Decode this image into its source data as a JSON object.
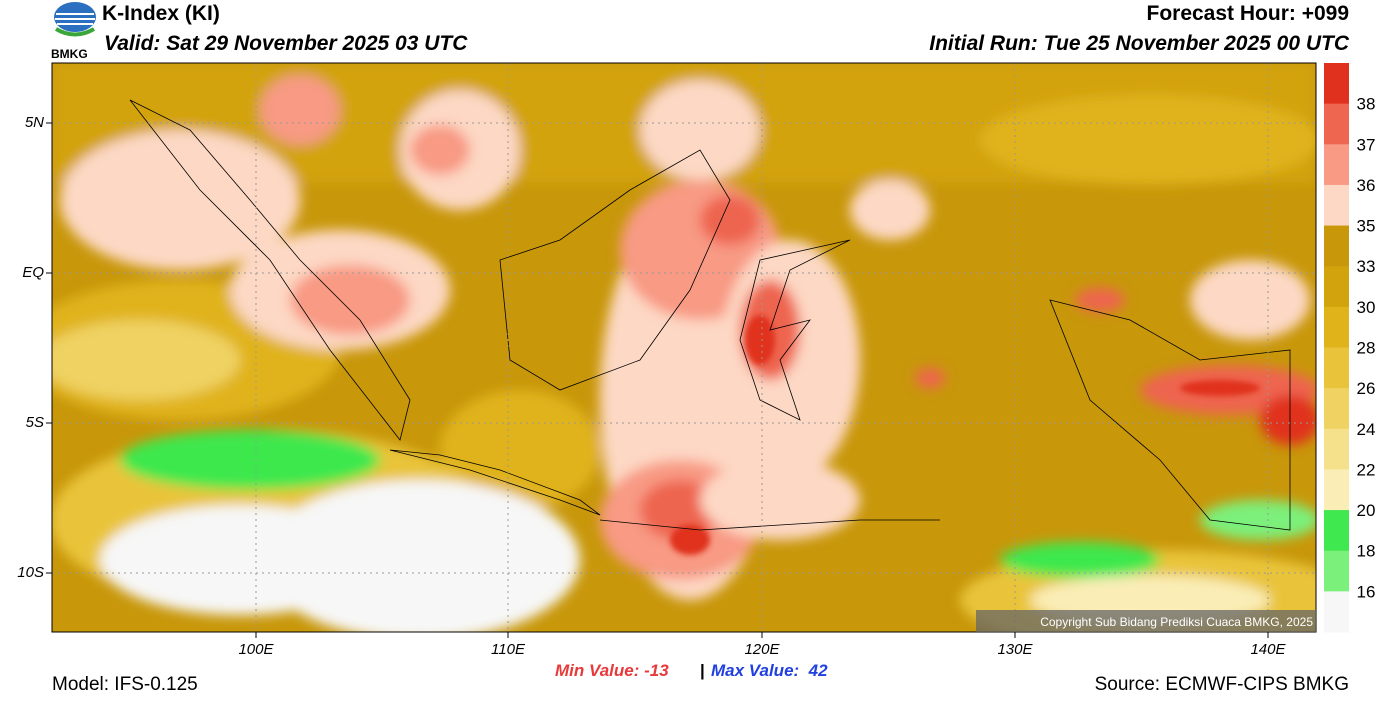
{
  "header": {
    "logo": "BMKG",
    "title": "K-Index (KI)",
    "valid": "Valid: Sat 29 November 2025 03 UTC",
    "forecast_hour": "Forecast Hour: +099",
    "initial_run": "Initial Run: Tue 25 November 2025 00 UTC"
  },
  "map": {
    "lat_labels": [
      "5N",
      "EQ",
      "5S",
      "10S"
    ],
    "lon_labels": [
      "100E",
      "110E",
      "120E",
      "130E",
      "140E"
    ],
    "copyright": "Copyright Sub Bidang Prediksi Cuaca BMKG, 2025"
  },
  "colorbar": {
    "labels": [
      "38",
      "37",
      "36",
      "35",
      "33",
      "30",
      "28",
      "26",
      "24",
      "22",
      "20",
      "18",
      "16"
    ],
    "colors": [
      "#e0301e",
      "#ee6550",
      "#f89a84",
      "#fdd8c4",
      "#c8970a",
      "#d3a30d",
      "#e0b31a",
      "#e9c43a",
      "#efd262",
      "#f5e08c",
      "#faedb6",
      "#3ee84e",
      "#7bf07a",
      "#f7f7f7"
    ]
  },
  "footer": {
    "min_value": "Min Value: -13",
    "separator": "|",
    "max_value": "Max Value:  42",
    "model": "Model: IFS-0.125",
    "source": "Source: ECMWF-CIPS BMKG"
  }
}
